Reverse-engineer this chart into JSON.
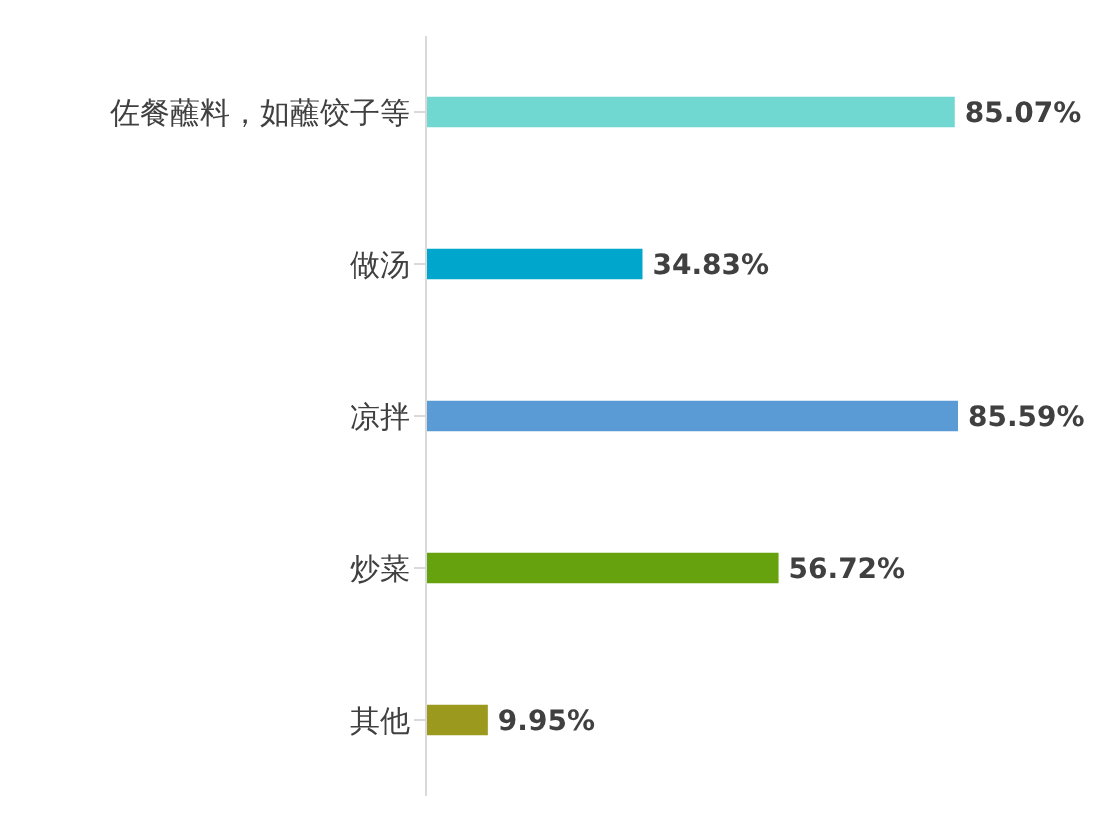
{
  "chart_data": {
    "type": "bar",
    "orientation": "horizontal",
    "categories": [
      "佐餐蘸料，如蘸饺子等",
      "做汤",
      "凉拌",
      "炒菜",
      "其他"
    ],
    "values": [
      85.07,
      34.83,
      85.59,
      56.72,
      9.95
    ],
    "colors": [
      "#70d8d0",
      "#00a6cc",
      "#5b9bd5",
      "#66a20e",
      "#9c9a1e"
    ],
    "value_labels": [
      "85.07%",
      "34.83%",
      "85.59%",
      "56.72%",
      "9.95%"
    ]
  }
}
